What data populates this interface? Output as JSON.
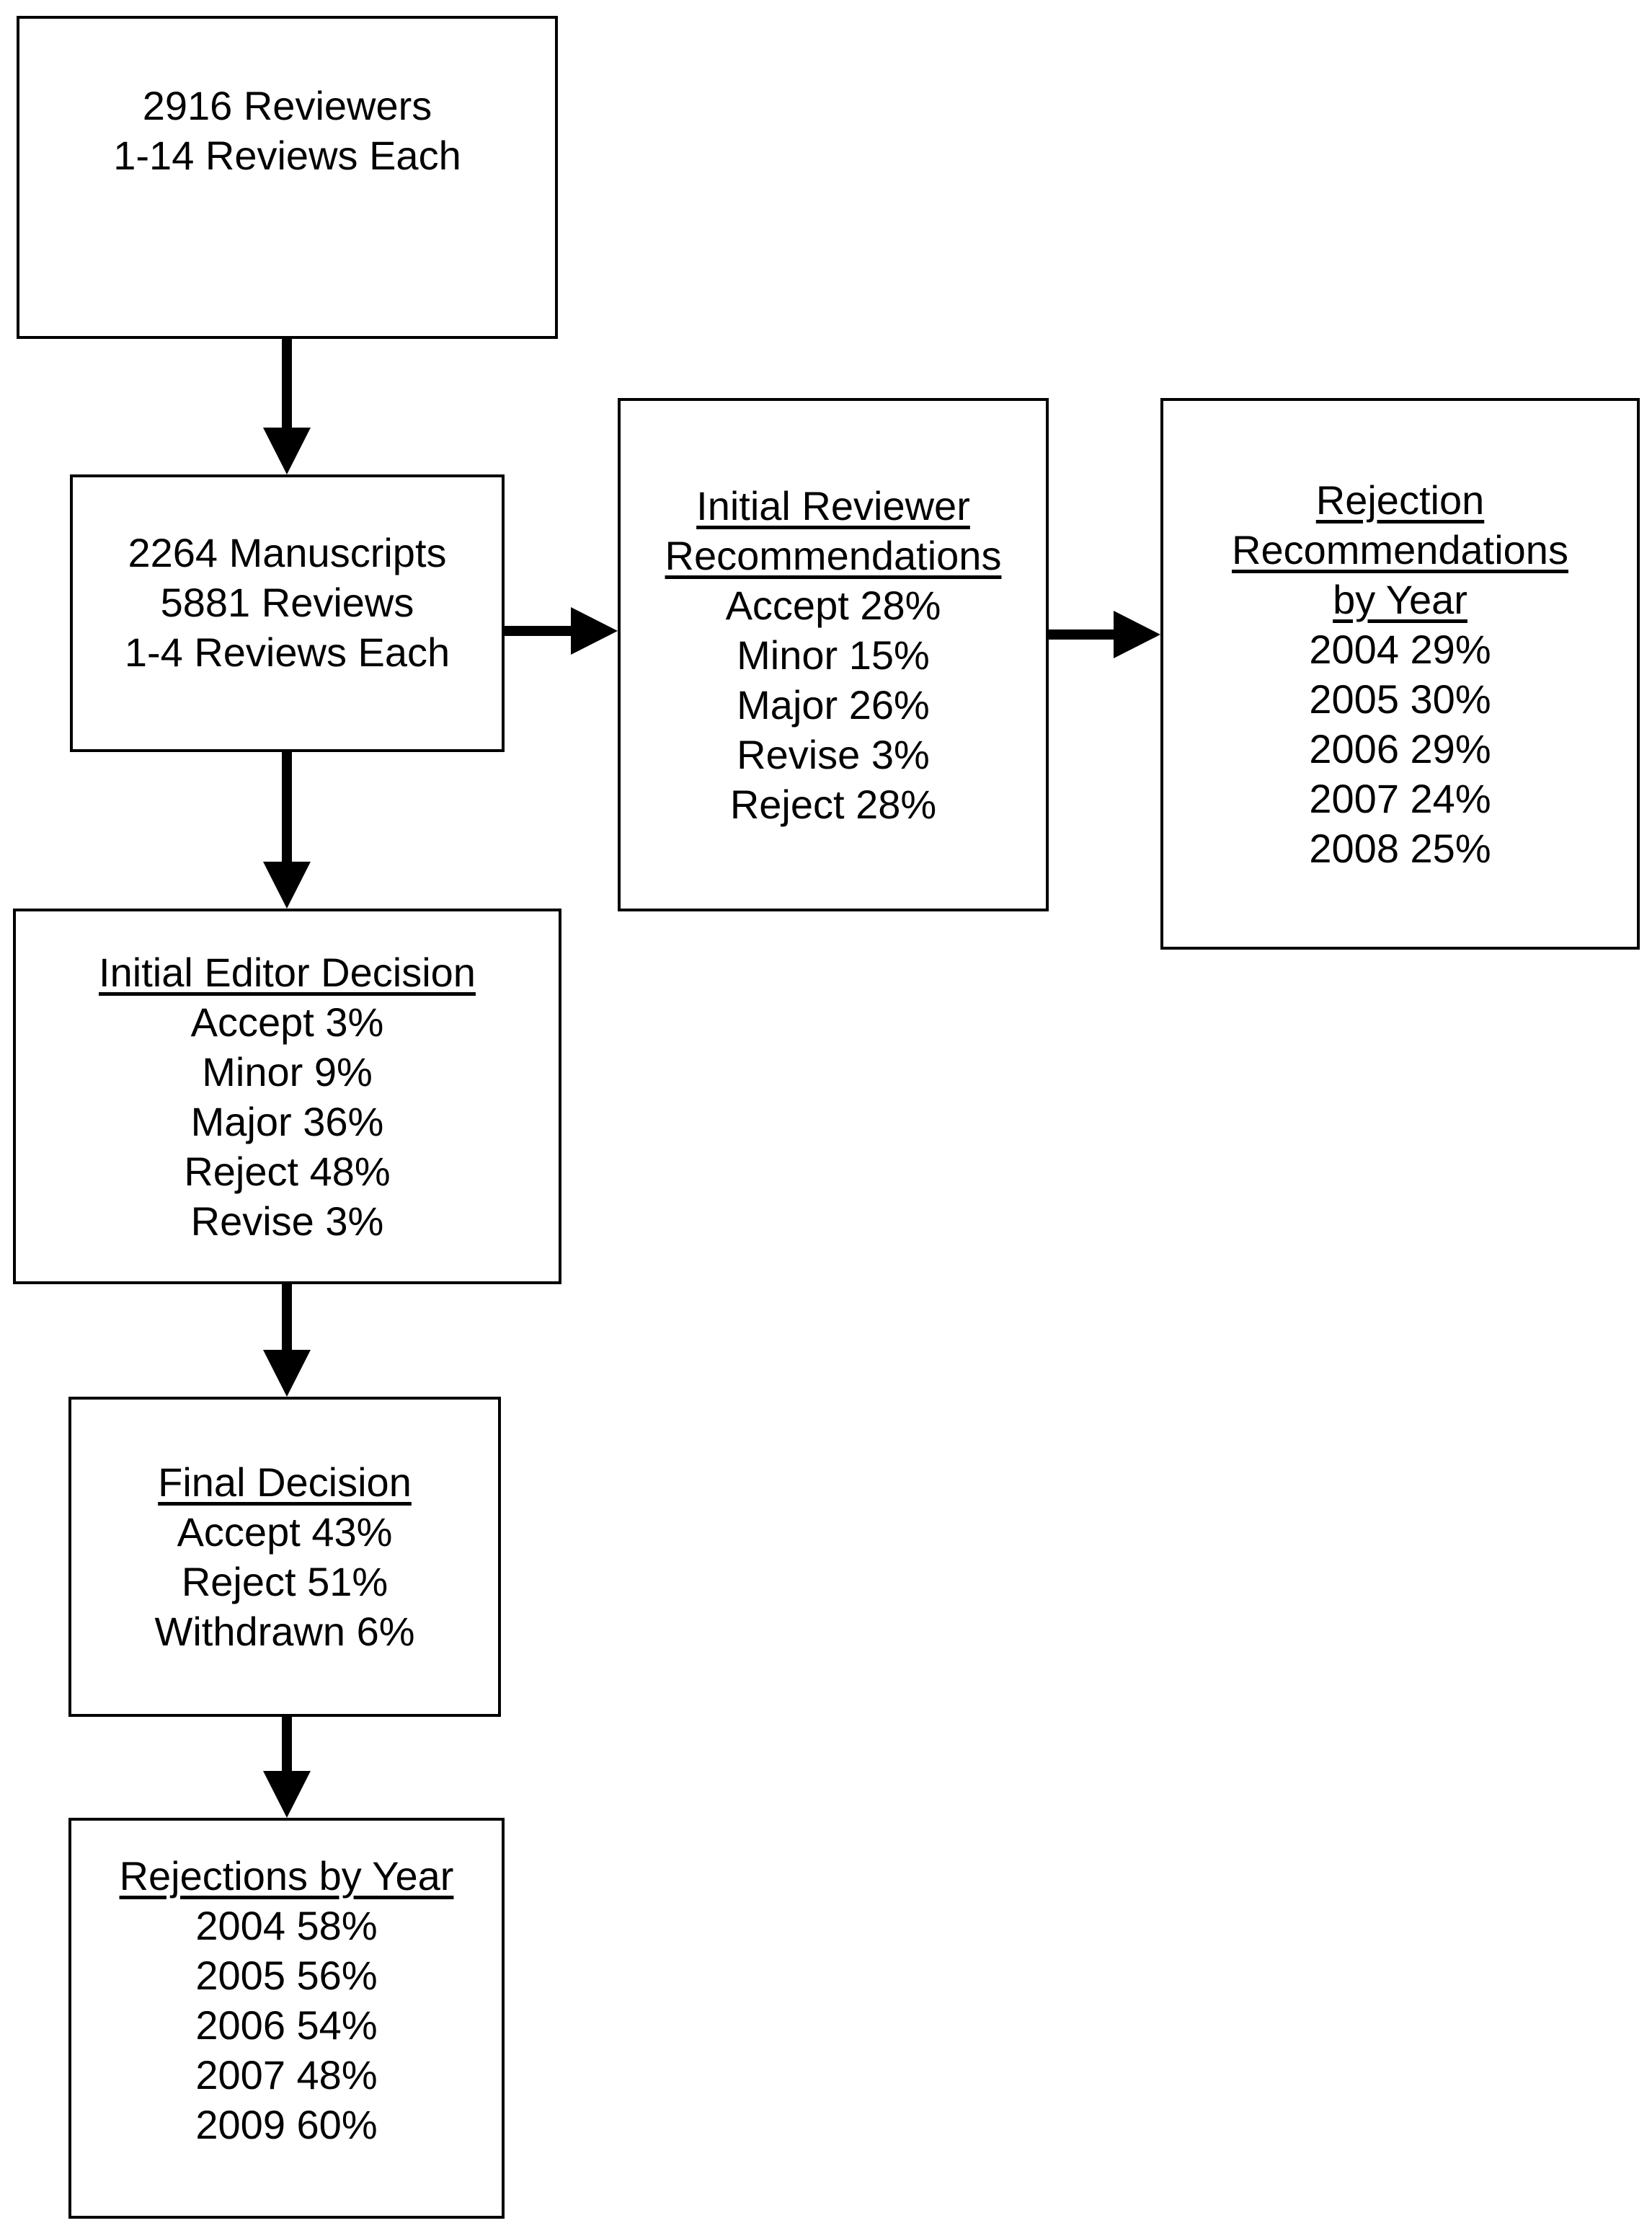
{
  "colors": {
    "background": "#ffffff",
    "box_border": "#000000",
    "text": "#000000",
    "arrow": "#000000"
  },
  "boxes": {
    "reviewers": {
      "lines": [
        "2916 Reviewers",
        "1-14 Reviews Each"
      ]
    },
    "manuscripts": {
      "lines": [
        "2264 Manuscripts",
        "5881 Reviews",
        "1-4 Reviews Each"
      ]
    },
    "initial_reviewer_recommendations": {
      "title": [
        "Initial Reviewer",
        "Recommendations"
      ],
      "lines": [
        "Accept 28%",
        "Minor 15%",
        "Major 26%",
        "Revise 3%",
        "Reject 28%"
      ]
    },
    "rejection_recommendations_by_year": {
      "title": [
        "Rejection",
        "Recommendations",
        "by Year"
      ],
      "lines": [
        "2004 29%",
        "2005 30%",
        "2006 29%",
        "2007 24%",
        "2008 25%"
      ]
    },
    "initial_editor_decision": {
      "title": [
        "Initial Editor Decision"
      ],
      "lines": [
        "Accept 3%",
        "Minor 9%",
        "Major 36%",
        "Reject 48%",
        "Revise 3%"
      ]
    },
    "final_decision": {
      "title": [
        "Final Decision"
      ],
      "lines": [
        "Accept 43%",
        "Reject 51%",
        "Withdrawn 6%"
      ]
    },
    "rejections_by_year": {
      "title": [
        "Rejections by Year"
      ],
      "lines": [
        "2004 58%",
        "2005 56%",
        "2006 54%",
        "2007 48%",
        "2009 60%"
      ]
    }
  }
}
